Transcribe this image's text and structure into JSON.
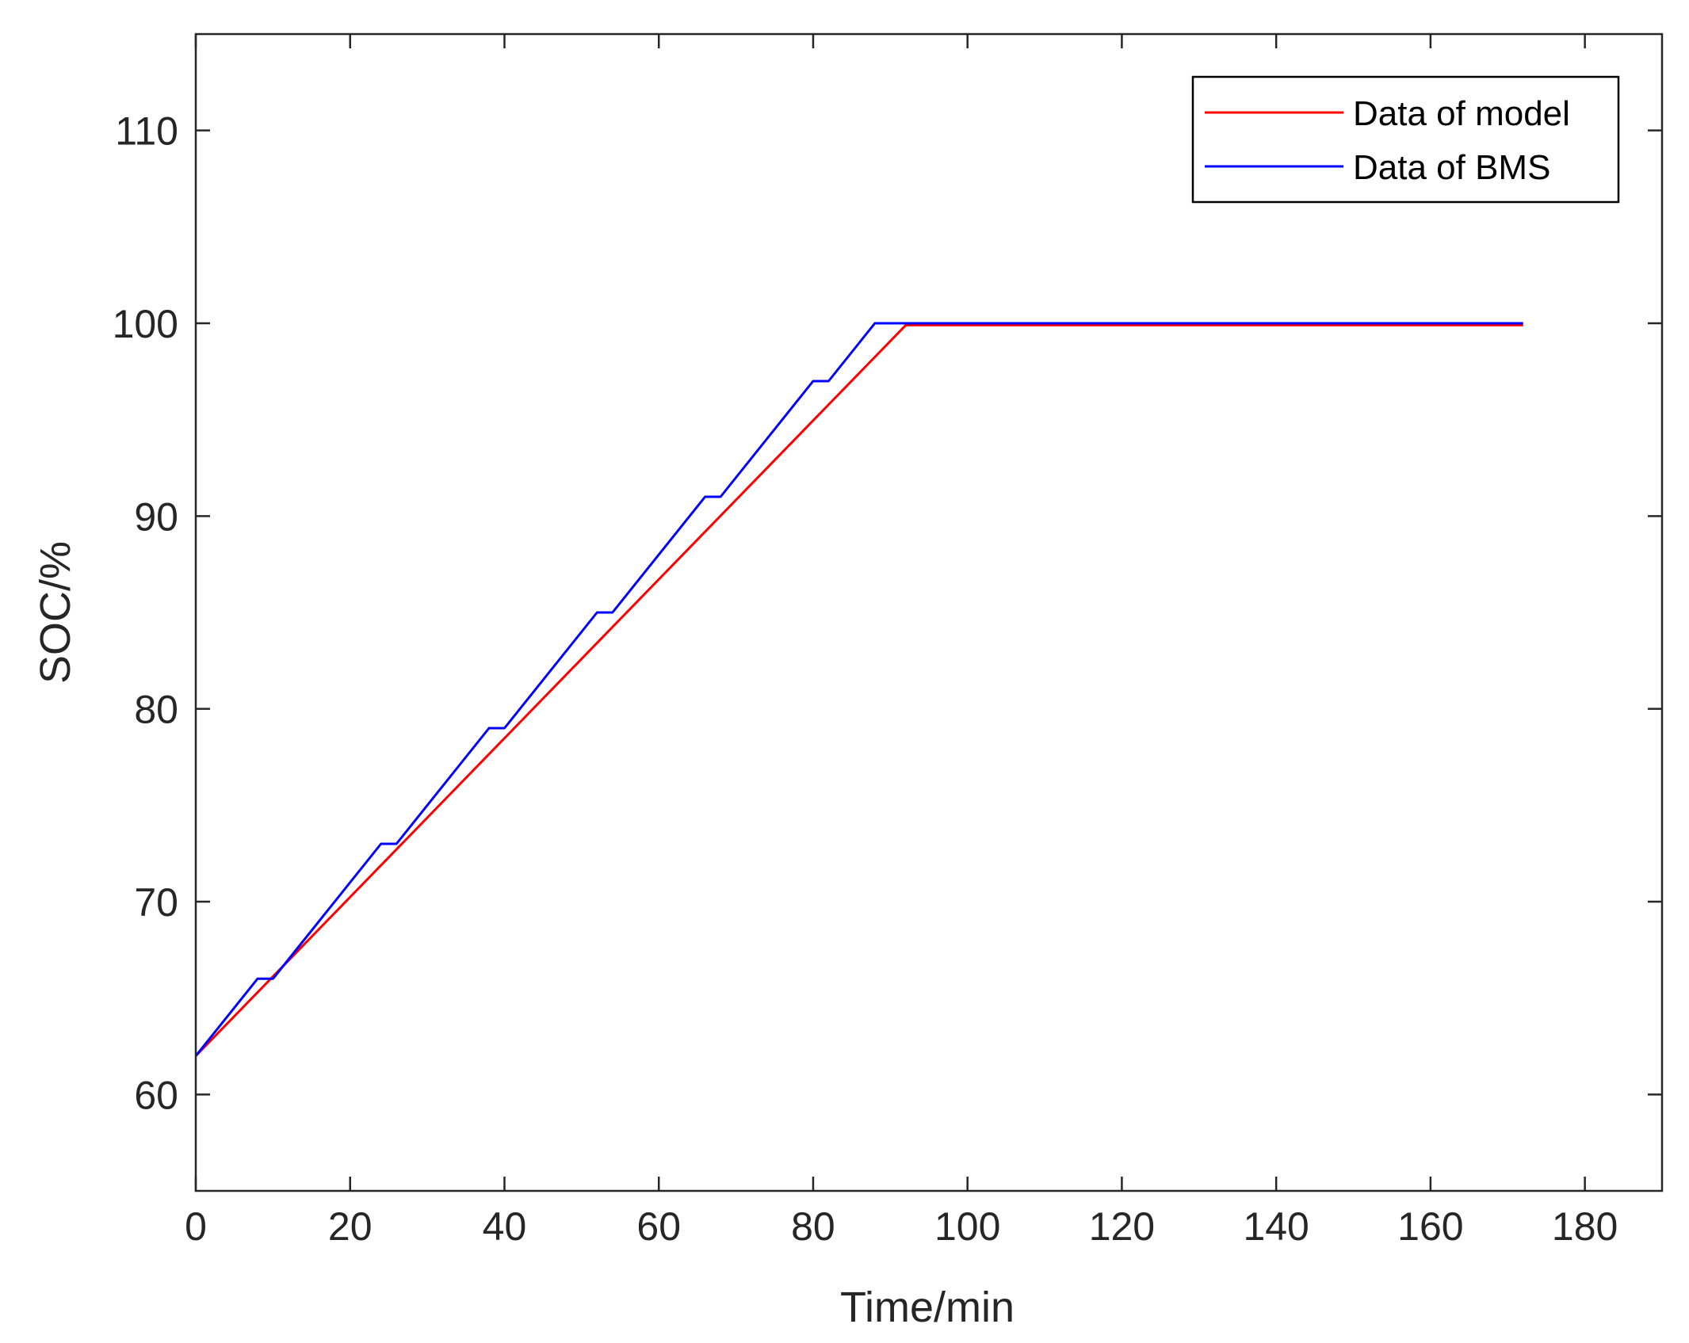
{
  "chart_data": {
    "type": "line",
    "title": "",
    "xlabel": "Time/min",
    "ylabel": "SOC/%",
    "xlim": [
      0,
      190
    ],
    "ylim": [
      55,
      115
    ],
    "xticks": [
      0,
      20,
      40,
      60,
      80,
      100,
      120,
      140,
      160,
      180
    ],
    "yticks": [
      60,
      70,
      80,
      90,
      100,
      110
    ],
    "grid": false,
    "legend_position": "top-right",
    "series": [
      {
        "name": "Data of model",
        "color": "#ff0000",
        "points": [
          [
            0,
            62
          ],
          [
            92,
            99.9
          ],
          [
            172,
            99.9
          ]
        ]
      },
      {
        "name": "Data of BMS",
        "color": "#0000ff",
        "points": [
          [
            0,
            62
          ],
          [
            8,
            66
          ],
          [
            10,
            66
          ],
          [
            24,
            73
          ],
          [
            26,
            73
          ],
          [
            38,
            79
          ],
          [
            40,
            79
          ],
          [
            52,
            85
          ],
          [
            54,
            85
          ],
          [
            66,
            91
          ],
          [
            68,
            91
          ],
          [
            80,
            97
          ],
          [
            82,
            97
          ],
          [
            88,
            100
          ],
          [
            172,
            100
          ]
        ]
      }
    ]
  }
}
